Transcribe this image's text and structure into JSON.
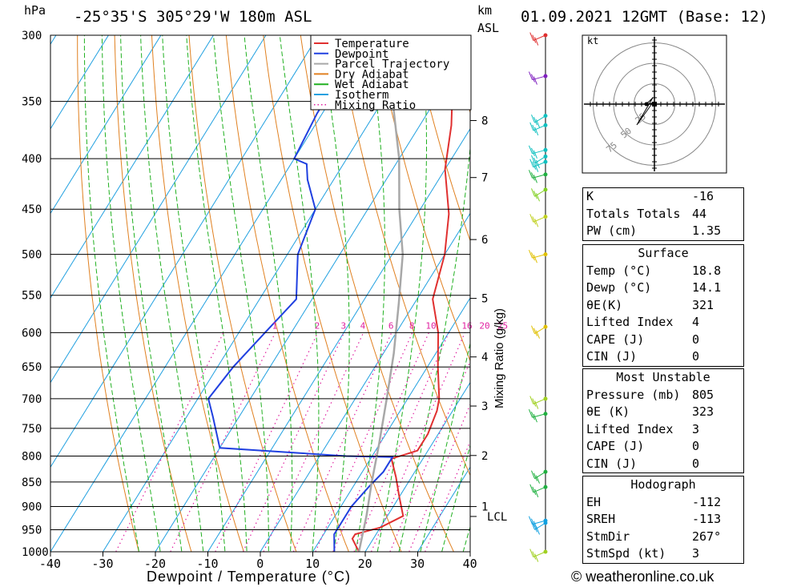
{
  "header": {
    "location": "-25°35'S 305°29'W 180m ASL",
    "datetime": "01.09.2021 12GMT (Base: 12)",
    "pressure_unit": "hPa",
    "height_unit_top": "km",
    "height_unit_bottom": "ASL"
  },
  "footer": {
    "credit": "© weatheronline.co.uk"
  },
  "chart_data": {
    "type": "line",
    "title": "-25°35'S 305°29'W 180m ASL",
    "xlabel": "Dewpoint / Temperature (°C)",
    "ylabel": "hPa",
    "right_label": "Mixing Ratio (g/kg)",
    "xlim": [
      -40,
      40
    ],
    "ylim": [
      1000,
      300
    ],
    "y_log": true,
    "x_ticks": [
      -40,
      -30,
      -20,
      -10,
      0,
      10,
      20,
      30,
      40
    ],
    "y_ticks": [
      300,
      350,
      400,
      450,
      500,
      550,
      600,
      650,
      700,
      750,
      800,
      850,
      900,
      950,
      1000
    ],
    "km_ticks": [
      {
        "label": "8",
        "p": 366
      },
      {
        "label": "7",
        "p": 418
      },
      {
        "label": "6",
        "p": 483
      },
      {
        "label": "5",
        "p": 554
      },
      {
        "label": "4",
        "p": 635
      },
      {
        "label": "3",
        "p": 712
      },
      {
        "label": "2",
        "p": 799
      },
      {
        "label": "1",
        "p": 900
      }
    ],
    "lcl": {
      "label": "LCL",
      "p": 921
    },
    "mixing_ratio_labels": [
      "1",
      "2",
      "3",
      "4",
      "6",
      "8",
      "10",
      "16",
      "20",
      "25"
    ],
    "legend": [
      {
        "label": "Temperature",
        "color": "#e03030",
        "dotted": false
      },
      {
        "label": "Dewpoint",
        "color": "#2040e0",
        "dotted": false
      },
      {
        "label": "Parcel Trajectory",
        "color": "#a8a8a8",
        "dotted": false
      },
      {
        "label": "Dry Adiabat",
        "color": "#e08020",
        "dotted": false
      },
      {
        "label": "Wet Adiabat",
        "color": "#20b020",
        "dotted": false
      },
      {
        "label": "Isotherm",
        "color": "#20a0e0",
        "dotted": false
      },
      {
        "label": "Mixing Ratio",
        "color": "#e020a0",
        "dotted": true
      }
    ],
    "series": [
      {
        "name": "Temperature",
        "color": "#e03030",
        "points": [
          [
            18.8,
            1000
          ],
          [
            16,
            970
          ],
          [
            16,
            960
          ],
          [
            20,
            945
          ],
          [
            23,
            920
          ],
          [
            20,
            880
          ],
          [
            17,
            840
          ],
          [
            14,
            805
          ],
          [
            18,
            790
          ],
          [
            18,
            760
          ],
          [
            17,
            720
          ],
          [
            16,
            700
          ],
          [
            12,
            650
          ],
          [
            8,
            600
          ],
          [
            3,
            555
          ],
          [
            0,
            500
          ],
          [
            -4,
            455
          ],
          [
            -10,
            410
          ],
          [
            -14,
            370
          ],
          [
            -16,
            355
          ],
          [
            -20,
            330
          ],
          [
            -25,
            300
          ]
        ]
      },
      {
        "name": "Dewpoint",
        "color": "#2040e0",
        "points": [
          [
            14.1,
            1000
          ],
          [
            12,
            960
          ],
          [
            12,
            940
          ],
          [
            12,
            900
          ],
          [
            13,
            860
          ],
          [
            14,
            830
          ],
          [
            14,
            802
          ],
          [
            5,
            800
          ],
          [
            -20,
            785
          ],
          [
            -25,
            730
          ],
          [
            -28,
            700
          ],
          [
            -27,
            650
          ],
          [
            -25,
            600
          ],
          [
            -23,
            555
          ],
          [
            -28,
            500
          ],
          [
            -30,
            450
          ],
          [
            -35,
            420
          ],
          [
            -37,
            405
          ],
          [
            -40,
            400
          ],
          [
            -41,
            360
          ],
          [
            -41,
            350
          ],
          [
            -40,
            330
          ],
          [
            -38,
            300
          ]
        ]
      },
      {
        "name": "Parcel Trajectory",
        "color": "#a8a8a8",
        "points": [
          [
            18.8,
            1000
          ],
          [
            16,
            920
          ],
          [
            13,
            850
          ],
          [
            10,
            780
          ],
          [
            6,
            700
          ],
          [
            2,
            630
          ],
          [
            -3,
            560
          ],
          [
            -8,
            500
          ],
          [
            -14,
            450
          ],
          [
            -20,
            400
          ],
          [
            -28,
            350
          ],
          [
            -36,
            310
          ]
        ]
      }
    ],
    "wind_barbs": [
      {
        "p": 300,
        "color": "#e03030"
      },
      {
        "p": 330,
        "color": "#8020c0"
      },
      {
        "p": 362,
        "color": "#10c0c0"
      },
      {
        "p": 370,
        "color": "#10c0c0"
      },
      {
        "p": 392,
        "color": "#10c0c0"
      },
      {
        "p": 398,
        "color": "#10c0c0"
      },
      {
        "p": 403,
        "color": "#10c0c0"
      },
      {
        "p": 415,
        "color": "#20b040"
      },
      {
        "p": 430,
        "color": "#80d020"
      },
      {
        "p": 458,
        "color": "#c0d020"
      },
      {
        "p": 500,
        "color": "#e0c000"
      },
      {
        "p": 592,
        "color": "#e0c000"
      },
      {
        "p": 700,
        "color": "#a0d020"
      },
      {
        "p": 725,
        "color": "#20b040"
      },
      {
        "p": 830,
        "color": "#20b040"
      },
      {
        "p": 860,
        "color": "#20b040"
      },
      {
        "p": 930,
        "color": "#10a0e0"
      },
      {
        "p": 935,
        "color": "#10a0e0"
      },
      {
        "p": 1000,
        "color": "#a0d020"
      }
    ],
    "hodograph": {
      "unit": "kt",
      "rings": [
        {
          "r": 25,
          "label": "25"
        },
        {
          "r": 50,
          "label": "50"
        },
        {
          "r": 75,
          "label": "75"
        }
      ]
    }
  },
  "indices": {
    "general": [
      {
        "label": "K",
        "value": "-16"
      },
      {
        "label": "Totals Totals",
        "value": "44"
      },
      {
        "label": "PW (cm)",
        "value": "1.35"
      }
    ],
    "surface": {
      "title": "Surface",
      "rows": [
        {
          "label": "Temp (°C)",
          "value": "18.8"
        },
        {
          "label": "Dewp (°C)",
          "value": "14.1"
        },
        {
          "label": "θE(K)",
          "value": "321"
        },
        {
          "label": "Lifted Index",
          "value": "4"
        },
        {
          "label": "CAPE (J)",
          "value": "0"
        },
        {
          "label": "CIN (J)",
          "value": "0"
        }
      ]
    },
    "most_unstable": {
      "title": "Most Unstable",
      "rows": [
        {
          "label": "Pressure (mb)",
          "value": "805"
        },
        {
          "label": "θE (K)",
          "value": "323"
        },
        {
          "label": "Lifted Index",
          "value": "3"
        },
        {
          "label": "CAPE (J)",
          "value": "0"
        },
        {
          "label": "CIN (J)",
          "value": "0"
        }
      ]
    },
    "hodograph": {
      "title": "Hodograph",
      "rows": [
        {
          "label": "EH",
          "value": "-112"
        },
        {
          "label": "SREH",
          "value": "-113"
        },
        {
          "label": "StmDir",
          "value": "267°"
        },
        {
          "label": "StmSpd (kt)",
          "value": "3"
        }
      ]
    }
  }
}
